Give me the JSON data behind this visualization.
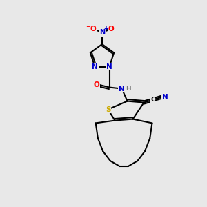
{
  "background_color": "#e8e8e8",
  "fig_size": [
    3.0,
    3.0
  ],
  "dpi": 100,
  "atom_colors": {
    "C": "#000000",
    "N": "#0000cc",
    "O": "#ff0000",
    "S": "#ccaa00",
    "H": "#777777"
  },
  "font_size": 7.5,
  "bond_lw": 1.5
}
